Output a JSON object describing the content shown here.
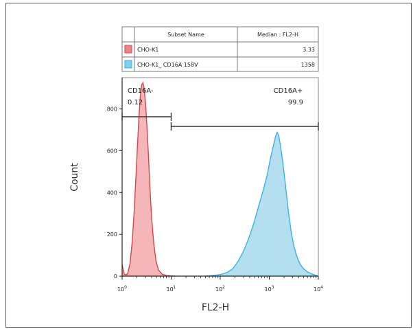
{
  "chart_data": {
    "type": "area",
    "xlabel": "FL2-H",
    "ylabel": "Count",
    "x_scale": "log",
    "xlim": [
      1,
      10000
    ],
    "ylim": [
      0,
      950
    ],
    "x_ticks": [
      1,
      10,
      100,
      1000,
      10000
    ],
    "x_tick_labels": [
      {
        "base": "10",
        "exp": "0"
      },
      {
        "base": "10",
        "exp": "1"
      },
      {
        "base": "10",
        "exp": "2"
      },
      {
        "base": "10",
        "exp": "3"
      },
      {
        "base": "10",
        "exp": "4"
      }
    ],
    "y_ticks": [
      0,
      200,
      400,
      600,
      800
    ],
    "y_tick_labels": [
      "0",
      "200",
      "400",
      "600",
      "800"
    ],
    "table": {
      "headers": [
        "Subset Name",
        "Median : FL2-H"
      ],
      "rows": [
        {
          "name": "CHO-K1",
          "median": "3.33",
          "color": "#e8868a"
        },
        {
          "name": "CHO-K1_ CD16A 158V",
          "median": "1358",
          "color": "#7fd0ea"
        }
      ]
    },
    "gates": [
      {
        "name": "CD16A-",
        "percent": "0.12",
        "range": [
          1,
          10
        ]
      },
      {
        "name": "CD16A+",
        "percent": "99.9",
        "range": [
          10,
          10000
        ]
      }
    ],
    "series": [
      {
        "name": "CHO-K1",
        "fill": "#f2a9ab",
        "stroke": "#d9454b",
        "points": [
          [
            1,
            55
          ],
          [
            1.1,
            10
          ],
          [
            1.2,
            6
          ],
          [
            1.3,
            12
          ],
          [
            1.45,
            60
          ],
          [
            1.6,
            160
          ],
          [
            1.75,
            300
          ],
          [
            1.9,
            460
          ],
          [
            2.05,
            620
          ],
          [
            2.2,
            760
          ],
          [
            2.35,
            860
          ],
          [
            2.5,
            915
          ],
          [
            2.65,
            925
          ],
          [
            2.8,
            900
          ],
          [
            3.0,
            830
          ],
          [
            3.2,
            720
          ],
          [
            3.45,
            570
          ],
          [
            3.7,
            420
          ],
          [
            4.0,
            280
          ],
          [
            4.4,
            160
          ],
          [
            4.9,
            75
          ],
          [
            5.5,
            30
          ],
          [
            6.5,
            10
          ],
          [
            8.0,
            3
          ],
          [
            10.0,
            1
          ],
          [
            12.0,
            0
          ]
        ]
      },
      {
        "name": "CHO-K1_ CD16A 158V",
        "fill": "#a6d9ee",
        "stroke": "#38b4e0",
        "points": [
          [
            50,
            0
          ],
          [
            70,
            3
          ],
          [
            90,
            6
          ],
          [
            110,
            10
          ],
          [
            140,
            18
          ],
          [
            180,
            35
          ],
          [
            230,
            70
          ],
          [
            300,
            120
          ],
          [
            380,
            180
          ],
          [
            480,
            250
          ],
          [
            600,
            330
          ],
          [
            750,
            410
          ],
          [
            900,
            480
          ],
          [
            1050,
            560
          ],
          [
            1200,
            620
          ],
          [
            1350,
            670
          ],
          [
            1450,
            688
          ],
          [
            1550,
            675
          ],
          [
            1700,
            620
          ],
          [
            1900,
            540
          ],
          [
            2150,
            430
          ],
          [
            2450,
            310
          ],
          [
            2800,
            210
          ],
          [
            3200,
            140
          ],
          [
            3700,
            90
          ],
          [
            4300,
            55
          ],
          [
            5000,
            35
          ],
          [
            6000,
            20
          ],
          [
            7500,
            10
          ],
          [
            10000,
            0
          ]
        ]
      }
    ]
  }
}
